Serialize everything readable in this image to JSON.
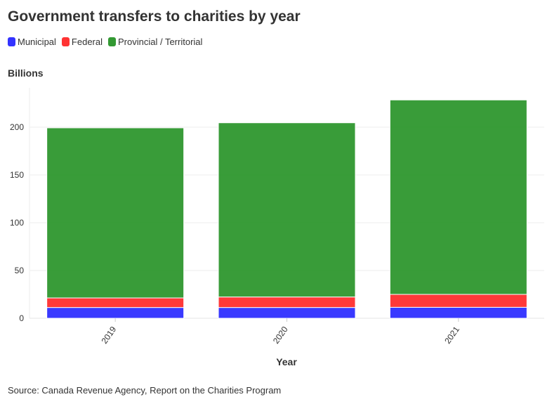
{
  "title": "Government transfers to charities by year",
  "source": "Source: Canada Revenue Agency, Report on the Charities Program",
  "chart_data": {
    "type": "bar",
    "stacked": true,
    "title": "Government transfers to charities by year",
    "xlabel": "Year",
    "ylabel": "Billions",
    "categories": [
      "2019",
      "2020",
      "2021"
    ],
    "series": [
      {
        "name": "Municipal",
        "color": "#3333ff",
        "values": [
          11.3,
          11.3,
          11.5
        ]
      },
      {
        "name": "Federal",
        "color": "#ff3333",
        "values": [
          10,
          11,
          13.5
        ]
      },
      {
        "name": "Provincial / Territorial",
        "color": "#339933",
        "values": [
          178,
          182.3,
          203.5
        ]
      }
    ],
    "ylim": [
      0,
      235
    ],
    "yticks": [
      0,
      50,
      100,
      150,
      200
    ],
    "grid": true,
    "legend": "top-left"
  }
}
